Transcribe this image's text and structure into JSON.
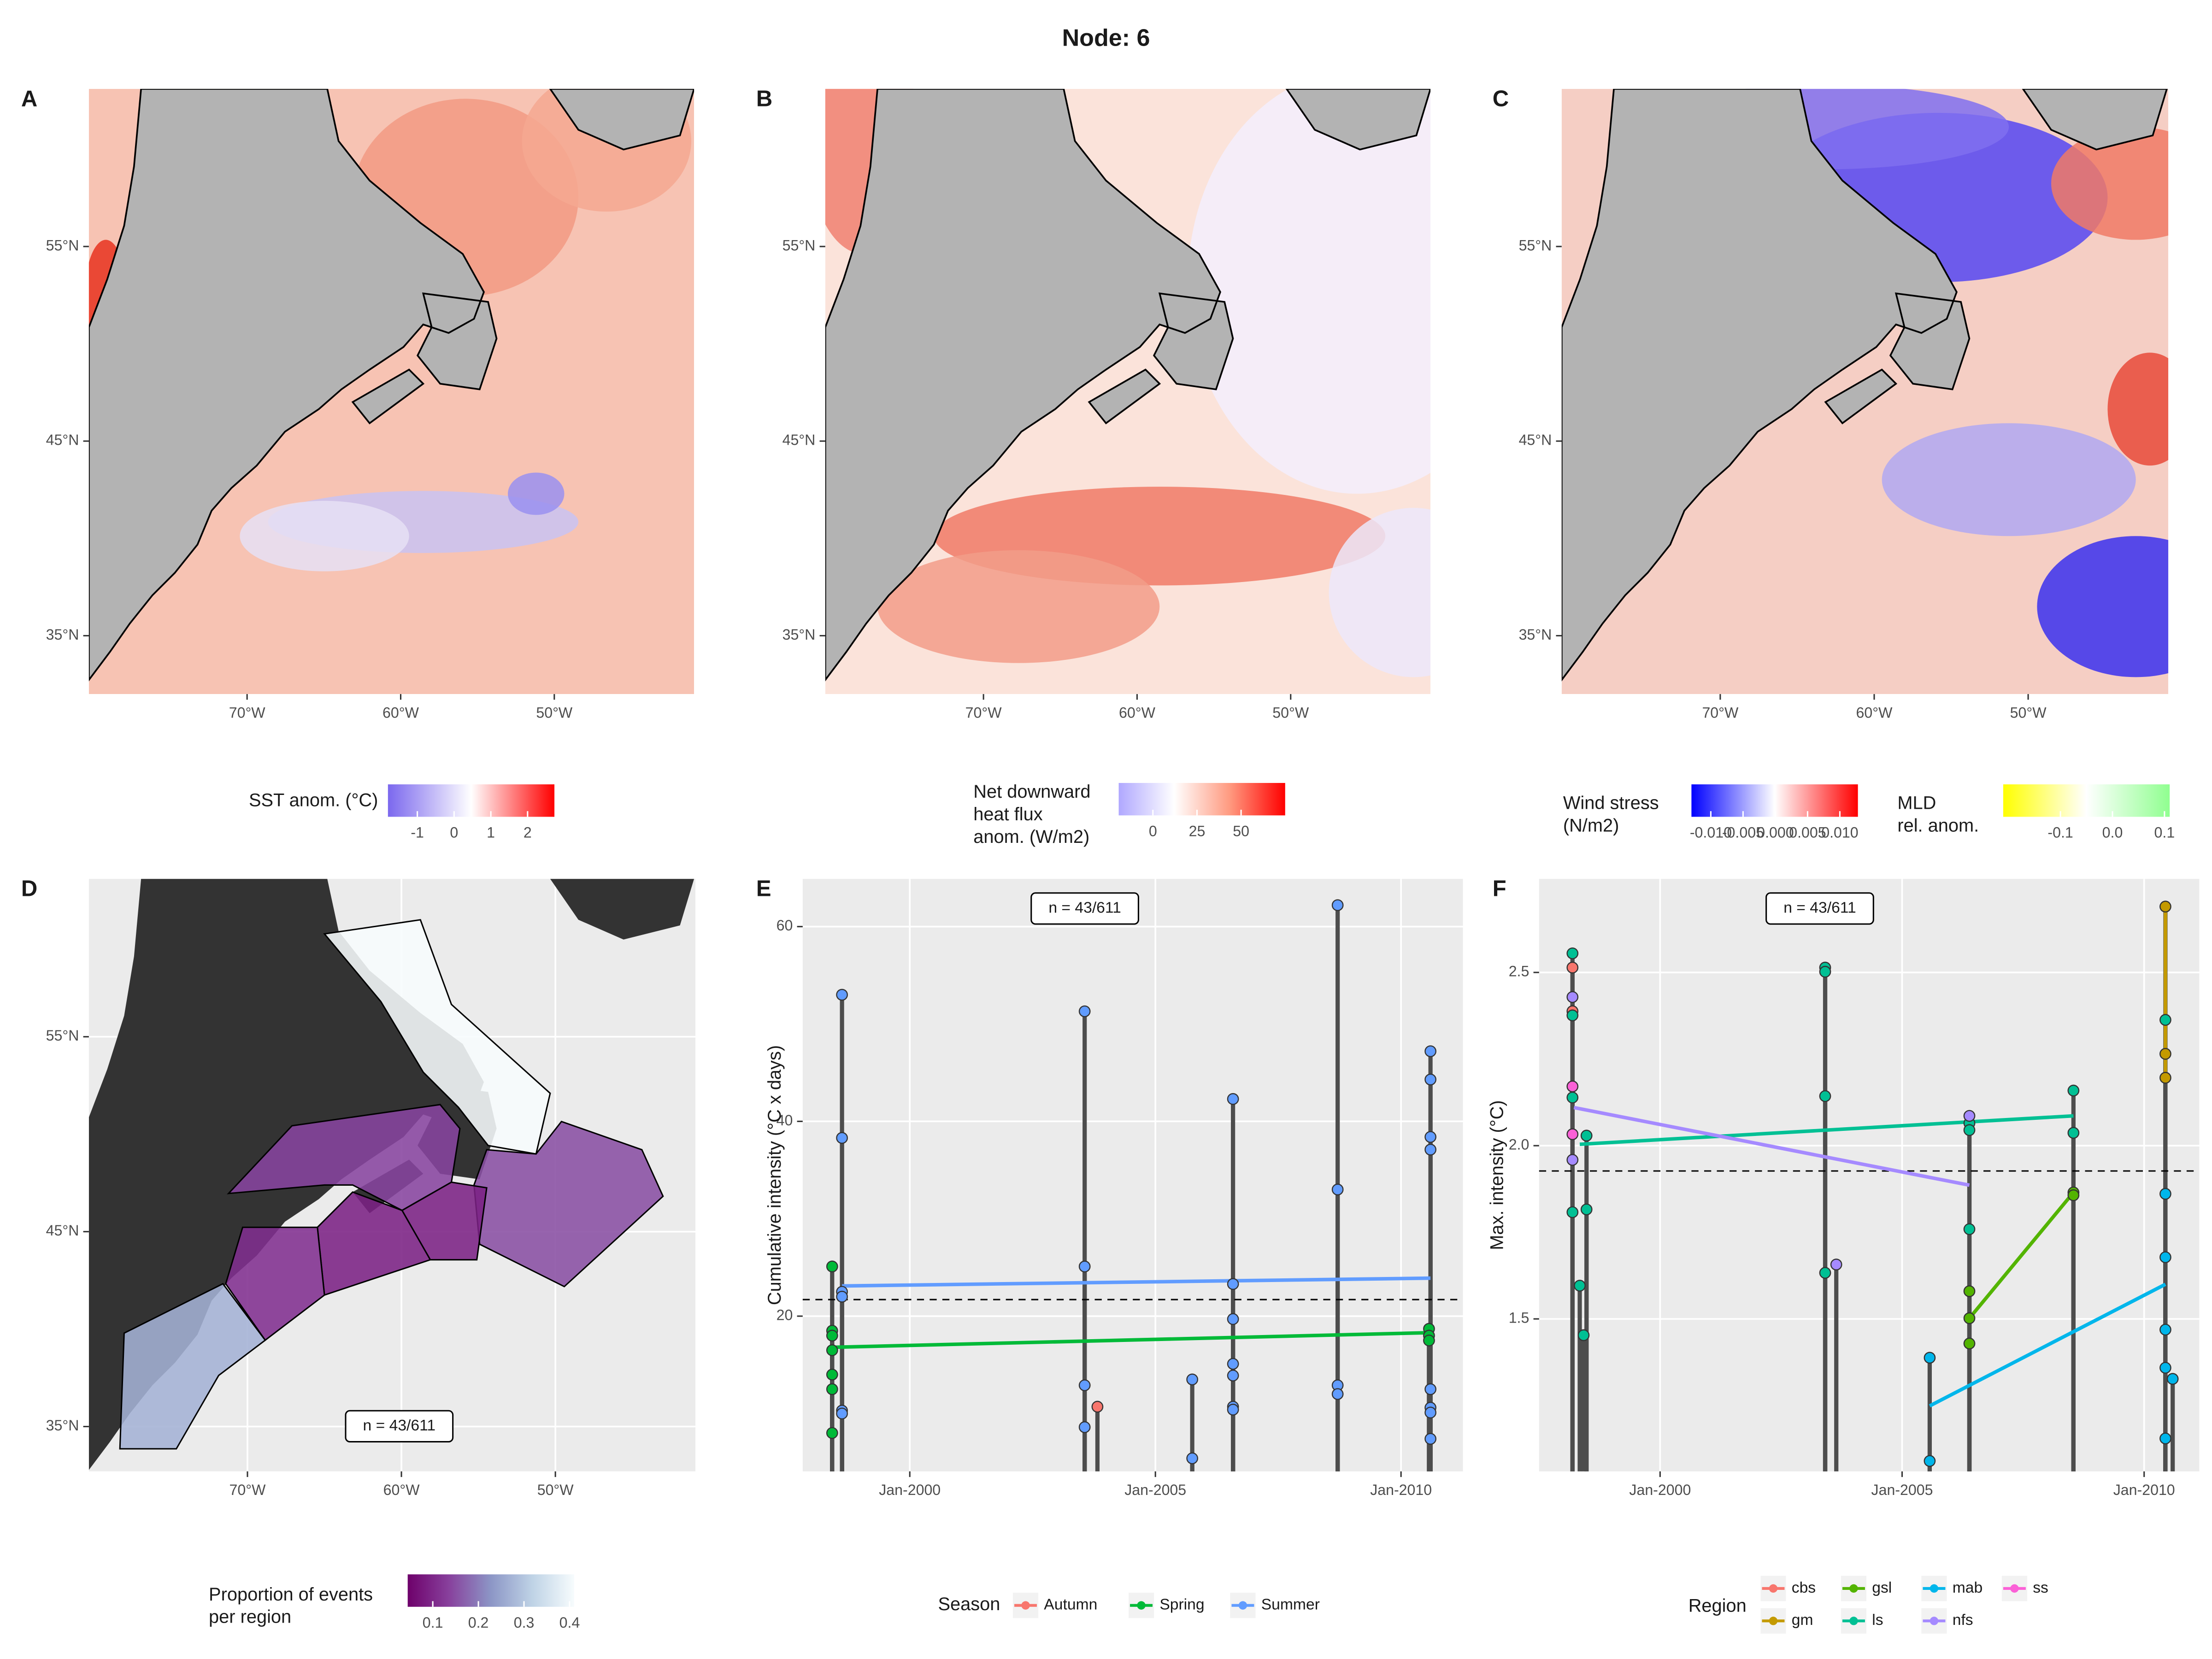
{
  "title": "Node: 6",
  "chart_data": [
    {
      "type": "map",
      "panel": "A",
      "xlim": [
        -80.3,
        -40.9
      ],
      "ylim": [
        32,
        63.1
      ],
      "xticks": [
        {
          "value": -70,
          "label": "70°W"
        },
        {
          "value": -60,
          "label": "60°W"
        },
        {
          "value": -50,
          "label": "50°W"
        }
      ],
      "yticks": [
        {
          "value": 35,
          "label": "35°N"
        },
        {
          "value": 45,
          "label": "45°N"
        },
        {
          "value": 55,
          "label": "55°N"
        }
      ],
      "legends": [
        {
          "title": "SST anom. (°C)",
          "colors": [
            "#7b68ee",
            "#ffffff",
            "#ff0000"
          ],
          "lim": [
            -1.8,
            2.73
          ],
          "ticks": [
            -1,
            0,
            1,
            2
          ]
        }
      ]
    },
    {
      "type": "map",
      "panel": "B",
      "xlim": [
        -80.3,
        -40.9
      ],
      "ylim": [
        32,
        63.1
      ],
      "xticks": [
        {
          "value": -70,
          "label": "70°W"
        },
        {
          "value": -60,
          "label": "60°W"
        },
        {
          "value": -50,
          "label": "50°W"
        }
      ],
      "yticks": [
        {
          "value": 35,
          "label": "35°N"
        },
        {
          "value": 45,
          "label": "45°N"
        },
        {
          "value": 55,
          "label": "55°N"
        }
      ],
      "legends": [
        {
          "title": [
            "Net downward",
            "heat flux",
            "anom. (W/m2)"
          ],
          "colors": [
            "#b0a8ff",
            "#ffffff",
            "#ff9a80",
            "#ff0000"
          ],
          "lim": [
            -19.4,
            75
          ],
          "ticks": [
            0,
            25,
            50
          ]
        }
      ]
    },
    {
      "type": "map",
      "panel": "C",
      "xlim": [
        -80.3,
        -40.9
      ],
      "ylim": [
        32,
        63.1
      ],
      "xticks": [
        {
          "value": -70,
          "label": "70°W"
        },
        {
          "value": -60,
          "label": "60°W"
        },
        {
          "value": -50,
          "label": "50°W"
        }
      ],
      "yticks": [
        {
          "value": 35,
          "label": "35°N"
        },
        {
          "value": 45,
          "label": "45°N"
        },
        {
          "value": 55,
          "label": "55°N"
        }
      ],
      "legends": [
        {
          "title": [
            "Wind stress",
            "(N/m2)"
          ],
          "colors": [
            "#0000ff",
            "#ffffff",
            "#ff0000"
          ],
          "lim": [
            -0.013,
            0.0128
          ],
          "ticks": [
            {
              "value": -0.01,
              "label": "-0.010"
            },
            -0.005,
            {
              "value": 0,
              "label": "0.000"
            },
            0.005,
            {
              "value": 0.01,
              "label": "0.010"
            }
          ]
        },
        {
          "title": [
            "MLD",
            "rel. anom."
          ],
          "colors": [
            "#ffff00",
            "#ffffff",
            "#90ff90"
          ],
          "lim": [
            -0.21,
            0.11
          ],
          "ticks": [
            -0.1,
            {
              "value": 0,
              "label": "0.0"
            },
            0.1
          ]
        }
      ]
    },
    {
      "type": "map",
      "panel": "D",
      "xlim": [
        -80.3,
        -40.9
      ],
      "ylim": [
        32.7,
        63.1
      ],
      "grid": true,
      "xticks": [
        {
          "value": -70,
          "label": "70°W"
        },
        {
          "value": -60,
          "label": "60°W"
        },
        {
          "value": -50,
          "label": "50°W"
        }
      ],
      "yticks": [
        {
          "value": 35,
          "label": "35°N"
        },
        {
          "value": 45,
          "label": "45°N"
        },
        {
          "value": 55,
          "label": "55°N"
        }
      ],
      "regions": {
        "values": [
          0.42,
          0.15,
          0.14,
          0.09,
          0.09,
          0.11,
          0.27
        ]
      },
      "annotation": "n = 43/611",
      "legends": [
        {
          "title": [
            "Proportion of events",
            "per region"
          ],
          "colors": [
            "#6e016b",
            "#88419d",
            "#8c96c6",
            "#bfd3e6",
            "#f7fcfd"
          ],
          "lim": [
            0.045,
            0.41
          ],
          "ticks": [
            0.1,
            0.2,
            0.3,
            0.4
          ]
        }
      ]
    },
    {
      "type": "lollipop",
      "panel": "E",
      "ylabel": "Cumulative intensity (°C x days)",
      "annotation": "n = 43/611",
      "legend_title": "Season",
      "xlim": [
        1997.82,
        2011.26
      ],
      "ylim": [
        4.06,
        64.9
      ],
      "grid": true,
      "hline": 21.7,
      "xticks": [
        {
          "value": 2000,
          "label": "Jan-2000"
        },
        {
          "value": 2005,
          "label": "Jan-2005"
        },
        {
          "value": 2010,
          "label": "Jan-2010"
        }
      ],
      "yticks": [
        20,
        40,
        60
      ],
      "series": [
        {
          "name": "Autumn",
          "color": "#F8766D",
          "x": [
            2003.82
          ],
          "y": [
            10.7
          ]
        },
        {
          "name": "Spring",
          "color": "#00BA38",
          "x": [
            1998.42,
            1998.42,
            1998.42,
            1998.42,
            1998.42,
            1998.42,
            1998.42,
            2010.57,
            2010.57,
            2010.57
          ],
          "y": [
            25.1,
            18.5,
            18,
            16.5,
            14,
            12.5,
            8,
            18.7,
            18,
            17.5
          ],
          "trend_x": [
            1998.42,
            2010.57
          ],
          "trend_y": [
            16.8,
            18.3
          ]
        },
        {
          "name": "Summer",
          "color": "#619CFF",
          "x": [
            1998.62,
            1998.62,
            1998.62,
            1998.62,
            1998.62,
            1998.62,
            2003.56,
            2003.56,
            2003.56,
            2003.56,
            2005.75,
            2005.75,
            2006.58,
            2006.58,
            2006.58,
            2006.58,
            2006.58,
            2006.58,
            2006.58,
            2008.71,
            2008.71,
            2008.71,
            2008.71,
            2010.6,
            2010.6,
            2010.6,
            2010.6,
            2010.6,
            2010.6,
            2010.6,
            2010.6
          ],
          "y": [
            53,
            38.3,
            22.5,
            22,
            10.3,
            10,
            51.3,
            25.1,
            12.9,
            8.6,
            13.5,
            5.4,
            42.3,
            23.3,
            19.7,
            15.1,
            13.9,
            10.7,
            10.4,
            62.2,
            33,
            12.9,
            12,
            47.2,
            44.3,
            38.4,
            37.1,
            12.5,
            10.6,
            10.1,
            7.4
          ],
          "trend_x": [
            1998.62,
            2010.6
          ],
          "trend_y": [
            23.1,
            23.9
          ]
        }
      ]
    },
    {
      "type": "lollipop",
      "panel": "F",
      "ylabel": "Max. intensity (°C)",
      "annotation": "n = 43/611",
      "legend_title": "Region",
      "xlim": [
        1997.5,
        2011.14
      ],
      "ylim": [
        1.06,
        2.77
      ],
      "grid": true,
      "hline": 1.927,
      "xticks": [
        {
          "value": 2000,
          "label": "Jan-2000"
        },
        {
          "value": 2005,
          "label": "Jan-2005"
        },
        {
          "value": 2010,
          "label": "Jan-2010"
        }
      ],
      "yticks": [
        1.5,
        {
          "value": 2,
          "label": "2.0"
        },
        2.5
      ],
      "series": [
        {
          "name": "cbs",
          "color": "#F8766D",
          "x": [
            1998.19,
            1998.19
          ],
          "y": [
            2.514,
            2.388
          ]
        },
        {
          "name": "gm",
          "color": "#C49A00",
          "x": [
            2010.44,
            2010.44,
            2010.44
          ],
          "y": [
            2.69,
            2.265,
            2.196
          ],
          "trend_x": [
            2010.44,
            2010.44
          ],
          "trend_y": [
            2.196,
            2.69
          ]
        },
        {
          "name": "gsl",
          "color": "#53B400",
          "x": [
            2006.39,
            2006.39,
            2006.39,
            2008.54,
            2008.54
          ],
          "y": [
            1.58,
            1.502,
            1.429,
            1.865,
            1.857
          ],
          "trend_x": [
            2006.39,
            2008.54
          ],
          "trend_y": [
            1.502,
            1.865
          ]
        },
        {
          "name": "ls",
          "color": "#00C094",
          "x": [
            1998.19,
            1998.19,
            1998.19,
            1998.19,
            1998.34,
            1998.42,
            1998.48,
            1998.48,
            2003.41,
            2003.41,
            2003.41,
            2003.41,
            2006.39,
            2006.39,
            2006.39,
            2008.54,
            2008.54,
            2010.44
          ],
          "y": [
            2.555,
            2.376,
            2.139,
            1.808,
            1.596,
            1.453,
            2.029,
            1.816,
            2.514,
            2.502,
            2.143,
            1.633,
            2.065,
            2.045,
            1.759,
            2.159,
            2.037,
            2.363
          ],
          "trend_x": [
            1998.34,
            2008.54
          ],
          "trend_y": [
            2.004,
            2.086
          ]
        },
        {
          "name": "mab",
          "color": "#00B6EB",
          "x": [
            2005.57,
            2005.57,
            2010.44,
            2010.44,
            2010.44,
            2010.44,
            2010.44,
            2010.59
          ],
          "y": [
            1.388,
            1.09,
            1.861,
            1.678,
            1.469,
            1.359,
            1.155,
            1.327
          ],
          "trend_x": [
            2005.57,
            2010.44
          ],
          "trend_y": [
            1.249,
            1.6
          ]
        },
        {
          "name": "nfs",
          "color": "#A58AFF",
          "x": [
            1998.19,
            1998.19,
            2003.64,
            2006.39
          ],
          "y": [
            2.429,
            1.959,
            1.657,
            2.086
          ],
          "trend_x": [
            1998.22,
            2006.39
          ],
          "trend_y": [
            2.11,
            1.886
          ]
        },
        {
          "name": "ss",
          "color": "#FB61D7",
          "x": [
            1998.19,
            1998.19
          ],
          "y": [
            2.171,
            2.033
          ]
        }
      ]
    }
  ]
}
